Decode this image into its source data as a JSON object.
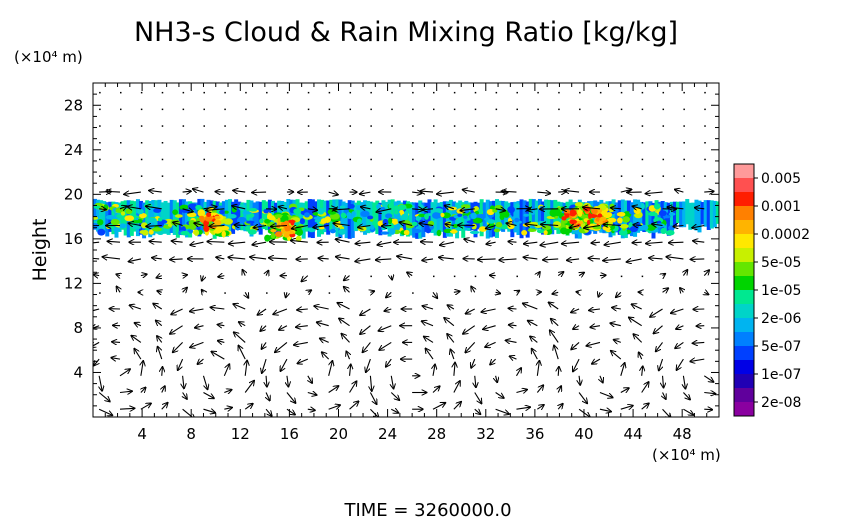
{
  "chart_data": {
    "type": "heatmap",
    "title": "NH3-s Cloud & Rain Mixing Ratio [kg/kg]",
    "ylabel": "Height",
    "y_unit": "(×10⁴ m)",
    "x_unit": "(×10⁴ m)",
    "footer": "TIME  =  3260000.0",
    "xlim": [
      0,
      51
    ],
    "ylim": [
      0,
      30
    ],
    "x_ticks": [
      "4",
      "8",
      "12",
      "16",
      "20",
      "24",
      "28",
      "32",
      "36",
      "40",
      "44",
      "48"
    ],
    "y_ticks": [
      "4",
      "8",
      "12",
      "16",
      "20",
      "24",
      "28"
    ],
    "colorbar": {
      "labels": [
        "0.005",
        "0.001",
        "0.0002",
        "5e-05",
        "1e-05",
        "2e-06",
        "5e-07",
        "1e-07",
        "2e-08"
      ],
      "colors": [
        "#ff9a9a",
        "#ff5050",
        "#ff1e00",
        "#ff8000",
        "#ffb400",
        "#ffe800",
        "#c8f000",
        "#64e600",
        "#00d400",
        "#00e890",
        "#00d4c8",
        "#00b4f0",
        "#0080ff",
        "#0040ff",
        "#0000e6",
        "#2000b4",
        "#60009c",
        "#8a00a0"
      ]
    },
    "cloud_layer": {
      "x_range": [
        0,
        51
      ],
      "base_height": 16,
      "top_height": 19.5,
      "cores": [
        {
          "x": 9.5,
          "y": 17.5,
          "level": "5e-05"
        },
        {
          "x": 15.5,
          "y": 17,
          "level": "0.0002"
        },
        {
          "x": 39,
          "y": 17.8,
          "level": "0.0002"
        },
        {
          "x": 41,
          "y": 18,
          "level": "0.0002"
        }
      ]
    },
    "wind_field": {
      "layer_winds": [
        {
          "y_range": [
            0,
            10
          ],
          "description": "convective eddies"
        },
        {
          "y_range": [
            14,
            20
          ],
          "description": "westward shear flow"
        }
      ]
    }
  }
}
